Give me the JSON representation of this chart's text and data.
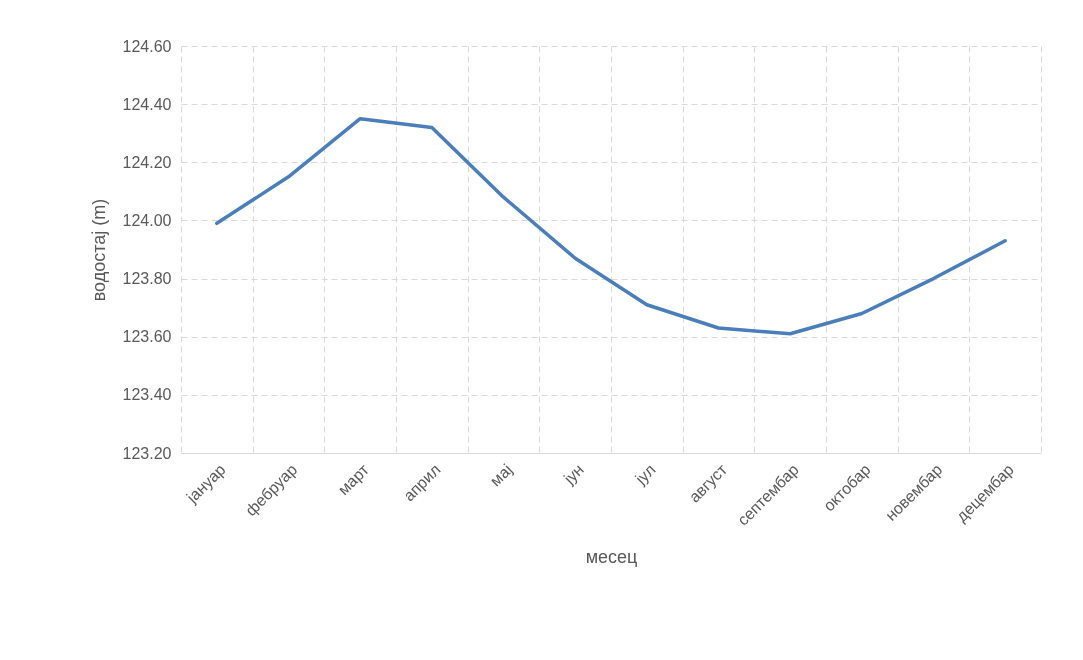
{
  "chart_data": {
    "type": "line",
    "xlabel": "месец",
    "ylabel": "водостај (m)",
    "categories": [
      "јануар",
      "фебруар",
      "март",
      "април",
      "мај",
      "јун",
      "јул",
      "август",
      "септембар",
      "октобар",
      "новембар",
      "децембар"
    ],
    "series": [
      {
        "color": "#4a7ebb",
        "values": [
          123.99,
          124.15,
          124.35,
          124.32,
          124.08,
          123.87,
          123.71,
          123.63,
          123.61,
          123.68,
          123.8,
          123.93
        ]
      }
    ],
    "ylim": [
      123.2,
      124.6
    ],
    "yticks": [
      {
        "value": 123.2,
        "label": "123.20"
      },
      {
        "value": 123.4,
        "label": "123.40"
      },
      {
        "value": 123.6,
        "label": "123.60"
      },
      {
        "value": 123.8,
        "label": "123.80"
      },
      {
        "value": 124.0,
        "label": "124.00"
      },
      {
        "value": 124.2,
        "label": "124.20"
      },
      {
        "value": 124.4,
        "label": "124.40"
      },
      {
        "value": 124.6,
        "label": "124.60"
      }
    ],
    "grid": true,
    "marker": "none",
    "line_style": "solid"
  }
}
